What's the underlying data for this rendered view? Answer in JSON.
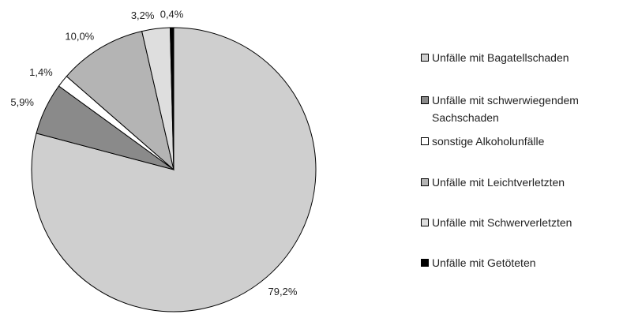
{
  "chart_data": {
    "type": "pie",
    "categories": [
      "Unfälle mit Bagatellschaden",
      "Unfälle mit schwerwiegendem Sachschaden",
      "sonstige Alkoholunfälle",
      "Unfälle mit Leichtverletzten",
      "Unfälle mit Schwerverletzten",
      "Unfälle mit Getöteten"
    ],
    "values": [
      79.2,
      5.9,
      1.4,
      10.0,
      3.2,
      0.4
    ],
    "value_labels": [
      "79,2%",
      "5,9%",
      "1,4%",
      "10,0%",
      "3,2%",
      "0,4%"
    ],
    "colors": [
      "#cfcfcf",
      "#8a8a8a",
      "#ffffff",
      "#b4b4b4",
      "#dedede",
      "#000000"
    ],
    "legend": "right"
  }
}
